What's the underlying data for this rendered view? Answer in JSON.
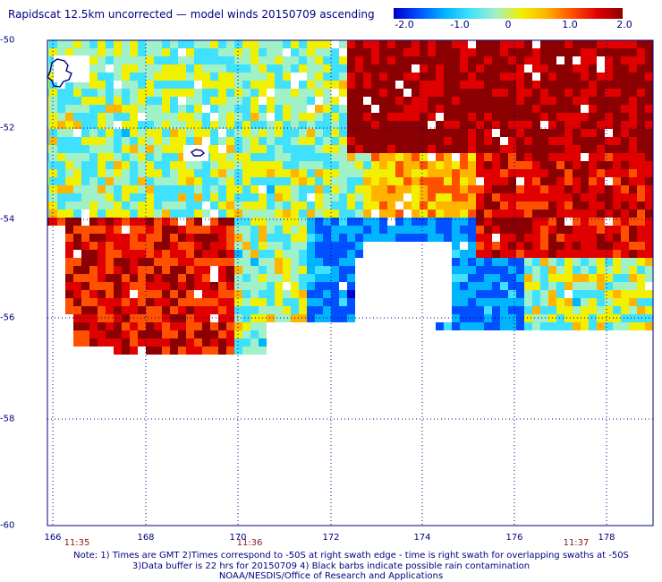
{
  "title": "Rapidscat 12.5km uncorrected — model winds 20150709 ascending",
  "colorbar": {
    "tick_labels": [
      "-2.0",
      "-1.0",
      "0",
      "1.0",
      "2.0"
    ],
    "stops": [
      "#0000c8",
      "#0050ff",
      "#00b4ff",
      "#40e0ff",
      "#a0f0c8",
      "#f0f000",
      "#ffb400",
      "#ff5000",
      "#e00000",
      "#8b0000"
    ]
  },
  "map": {
    "lon_range": [
      166,
      179
    ],
    "lat_range": [
      -50,
      -60
    ],
    "lat_labels": [
      "-50",
      "-52",
      "-54",
      "-56",
      "-58",
      "-60"
    ],
    "lon_labels": [
      "166",
      "168",
      "170",
      "172",
      "174",
      "176",
      "178"
    ],
    "time_labels": [
      "11:35",
      "11:36",
      "11:37"
    ],
    "grid": true,
    "land_label": "Auckland Islands / Campbell Island coastlines"
  },
  "notes": {
    "line1": "Note: 1) Times are GMT 2)Times correspond to -50S at right swath edge - time is right swath for overlapping swaths at -50S",
    "line2": "3)Data buffer is 22 hrs for 20150709 4) Black barbs indicate possible rain contamination",
    "line3": "NOAA/NESDIS/Office of Research and Applications"
  }
}
